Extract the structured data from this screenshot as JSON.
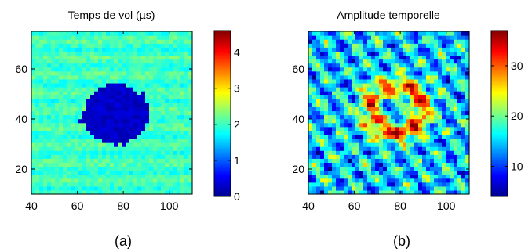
{
  "captions": [
    "(a)",
    "(b)"
  ],
  "chart_data": [
    {
      "type": "heatmap",
      "title": "Temps de vol (µs)",
      "xlabel": "",
      "ylabel": "",
      "xlim": [
        40,
        110
      ],
      "ylim": [
        10,
        75
      ],
      "xticks": [
        40,
        60,
        80,
        100
      ],
      "yticks": [
        20,
        40,
        60
      ],
      "grid": false,
      "colormap": "jet",
      "colorbar": {
        "range": [
          0,
          4.6
        ],
        "ticks": [
          0,
          1,
          2,
          3,
          4
        ]
      },
      "background_value": 2.0,
      "features": [
        {
          "shape": "ellipse",
          "cx": 77,
          "cy": 42,
          "rx": 15,
          "ry": 12,
          "value": 0.2
        }
      ]
    },
    {
      "type": "heatmap",
      "title": "Amplitude temporelle",
      "xlabel": "",
      "ylabel": "",
      "xlim": [
        40,
        110
      ],
      "ylim": [
        10,
        75
      ],
      "xticks": [
        40,
        60,
        80,
        100
      ],
      "yticks": [
        20,
        40,
        60
      ],
      "grid": false,
      "colormap": "jet",
      "colorbar": {
        "range": [
          4,
          37
        ],
        "ticks": [
          10,
          20,
          30
        ]
      },
      "background_value": 15,
      "features": [
        {
          "shape": "ring",
          "cx": 78,
          "cy": 44,
          "rx": 14,
          "ry": 12,
          "value": 30
        }
      ]
    }
  ]
}
